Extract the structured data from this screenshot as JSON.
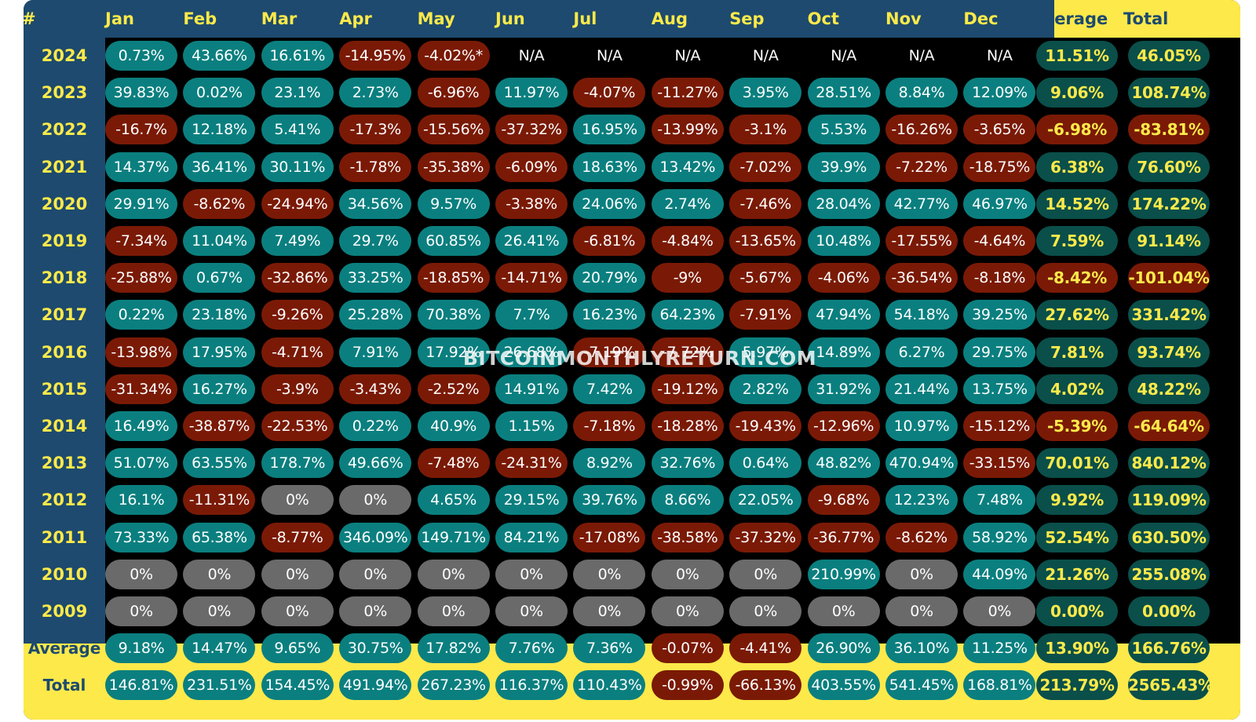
{
  "chart_data": {
    "type": "table",
    "corner_label": "#",
    "columns": [
      "Jan",
      "Feb",
      "Mar",
      "Apr",
      "May",
      "Jun",
      "Jul",
      "Aug",
      "Sep",
      "Oct",
      "Nov",
      "Dec"
    ],
    "summary_columns": [
      "Average",
      "Total"
    ],
    "rows": [
      {
        "year": "2024",
        "values": [
          "0.73%",
          "43.66%",
          "16.61%",
          "-14.95%",
          "-4.02%*",
          "N/A",
          "N/A",
          "N/A",
          "N/A",
          "N/A",
          "N/A",
          "N/A"
        ],
        "average": "11.51%",
        "total": "46.05%"
      },
      {
        "year": "2023",
        "values": [
          "39.83%",
          "0.02%",
          "23.1%",
          "2.73%",
          "-6.96%",
          "11.97%",
          "-4.07%",
          "-11.27%",
          "3.95%",
          "28.51%",
          "8.84%",
          "12.09%"
        ],
        "average": "9.06%",
        "total": "108.74%"
      },
      {
        "year": "2022",
        "values": [
          "-16.7%",
          "12.18%",
          "5.41%",
          "-17.3%",
          "-15.56%",
          "-37.32%",
          "16.95%",
          "-13.99%",
          "-3.1%",
          "5.53%",
          "-16.26%",
          "-3.65%"
        ],
        "average": "-6.98%",
        "total": "-83.81%"
      },
      {
        "year": "2021",
        "values": [
          "14.37%",
          "36.41%",
          "30.11%",
          "-1.78%",
          "-35.38%",
          "-6.09%",
          "18.63%",
          "13.42%",
          "-7.02%",
          "39.9%",
          "-7.22%",
          "-18.75%"
        ],
        "average": "6.38%",
        "total": "76.60%"
      },
      {
        "year": "2020",
        "values": [
          "29.91%",
          "-8.62%",
          "-24.94%",
          "34.56%",
          "9.57%",
          "-3.38%",
          "24.06%",
          "2.74%",
          "-7.46%",
          "28.04%",
          "42.77%",
          "46.97%"
        ],
        "average": "14.52%",
        "total": "174.22%"
      },
      {
        "year": "2019",
        "values": [
          "-7.34%",
          "11.04%",
          "7.49%",
          "29.7%",
          "60.85%",
          "26.41%",
          "-6.81%",
          "-4.84%",
          "-13.65%",
          "10.48%",
          "-17.55%",
          "-4.64%"
        ],
        "average": "7.59%",
        "total": "91.14%"
      },
      {
        "year": "2018",
        "values": [
          "-25.88%",
          "0.67%",
          "-32.86%",
          "33.25%",
          "-18.85%",
          "-14.71%",
          "20.79%",
          "-9%",
          "-5.67%",
          "-4.06%",
          "-36.54%",
          "-8.18%"
        ],
        "average": "-8.42%",
        "total": "-101.04%"
      },
      {
        "year": "2017",
        "values": [
          "0.22%",
          "23.18%",
          "-9.26%",
          "25.28%",
          "70.38%",
          "7.7%",
          "16.23%",
          "64.23%",
          "-7.91%",
          "47.94%",
          "54.18%",
          "39.25%"
        ],
        "average": "27.62%",
        "total": "331.42%"
      },
      {
        "year": "2016",
        "values": [
          "-13.98%",
          "17.95%",
          "-4.71%",
          "7.91%",
          "17.92%",
          "26.68%",
          "-7.19%",
          "-7.72%",
          "5.97%",
          "14.89%",
          "6.27%",
          "29.75%"
        ],
        "average": "7.81%",
        "total": "93.74%"
      },
      {
        "year": "2015",
        "values": [
          "-31.34%",
          "16.27%",
          "-3.9%",
          "-3.43%",
          "-2.52%",
          "14.91%",
          "7.42%",
          "-19.12%",
          "2.82%",
          "31.92%",
          "21.44%",
          "13.75%"
        ],
        "average": "4.02%",
        "total": "48.22%"
      },
      {
        "year": "2014",
        "values": [
          "16.49%",
          "-38.87%",
          "-22.53%",
          "0.22%",
          "40.9%",
          "1.15%",
          "-7.18%",
          "-18.28%",
          "-19.43%",
          "-12.96%",
          "10.97%",
          "-15.12%"
        ],
        "average": "-5.39%",
        "total": "-64.64%"
      },
      {
        "year": "2013",
        "values": [
          "51.07%",
          "63.55%",
          "178.7%",
          "49.66%",
          "-7.48%",
          "-24.31%",
          "8.92%",
          "32.76%",
          "0.64%",
          "48.82%",
          "470.94%",
          "-33.15%"
        ],
        "average": "70.01%",
        "total": "840.12%"
      },
      {
        "year": "2012",
        "values": [
          "16.1%",
          "-11.31%",
          "0%",
          "0%",
          "4.65%",
          "29.15%",
          "39.76%",
          "8.66%",
          "22.05%",
          "-9.68%",
          "12.23%",
          "7.48%"
        ],
        "average": "9.92%",
        "total": "119.09%"
      },
      {
        "year": "2011",
        "values": [
          "73.33%",
          "65.38%",
          "-8.77%",
          "346.09%",
          "149.71%",
          "84.21%",
          "-17.08%",
          "-38.58%",
          "-37.32%",
          "-36.77%",
          "-8.62%",
          "58.92%"
        ],
        "average": "52.54%",
        "total": "630.50%"
      },
      {
        "year": "2010",
        "values": [
          "0%",
          "0%",
          "0%",
          "0%",
          "0%",
          "0%",
          "0%",
          "0%",
          "0%",
          "210.99%",
          "0%",
          "44.09%"
        ],
        "average": "21.26%",
        "total": "255.08%"
      },
      {
        "year": "2009",
        "values": [
          "0%",
          "0%",
          "0%",
          "0%",
          "0%",
          "0%",
          "0%",
          "0%",
          "0%",
          "0%",
          "0%",
          "0%"
        ],
        "average": "0.00%",
        "total": "0.00%"
      }
    ],
    "footer_rows": [
      {
        "label": "Average",
        "values": [
          "9.18%",
          "14.47%",
          "9.65%",
          "30.75%",
          "17.82%",
          "7.76%",
          "7.36%",
          "-0.07%",
          "-4.41%",
          "26.90%",
          "36.10%",
          "11.25%"
        ],
        "average": "13.90%",
        "total": "166.76%"
      },
      {
        "label": "Total",
        "values": [
          "146.81%",
          "231.51%",
          "154.45%",
          "491.94%",
          "267.23%",
          "116.37%",
          "110.43%",
          "-0.99%",
          "-66.13%",
          "403.55%",
          "541.45%",
          "168.81%"
        ],
        "average": "213.79%",
        "total": "2565.43%"
      }
    ],
    "watermark": "BITCOINMONTHLYRETURN.COM",
    "colors": {
      "positive": "#0b7f7f",
      "negative": "#7a1a06",
      "zero": "#6a6a6a",
      "summary_positive": "#0a4f4a",
      "header_blue": "#1d4a6e",
      "accent_yellow": "#fde94a"
    }
  }
}
